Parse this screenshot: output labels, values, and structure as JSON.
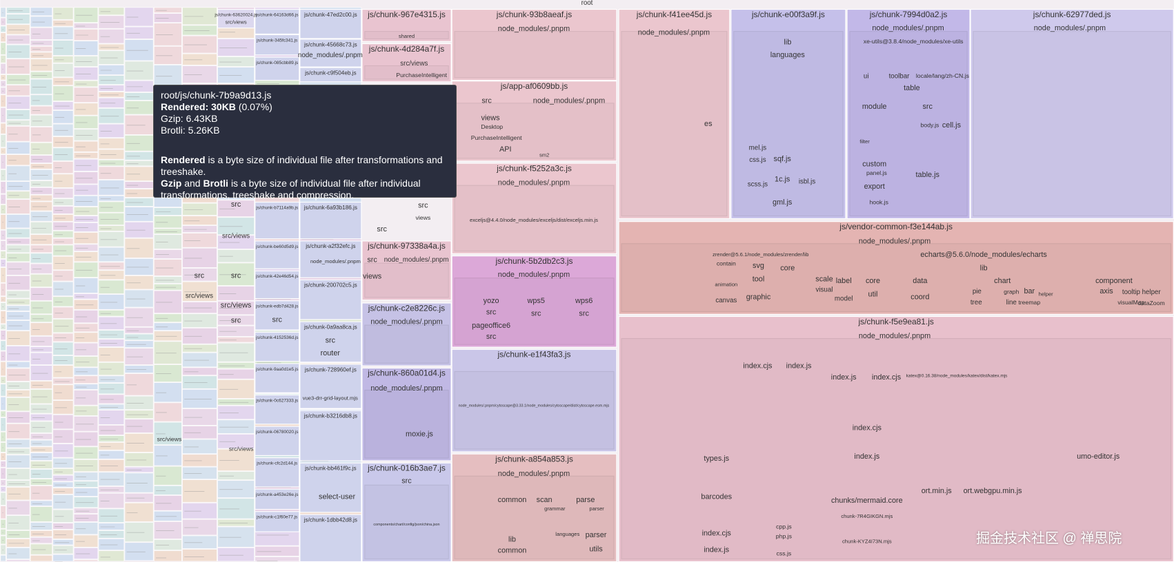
{
  "title": "root",
  "nodes": [
    {
      "label": "js/chunk-967e4315.js"
    },
    {
      "label": "shared"
    },
    {
      "label": "js/chunk-4d284a7f.js"
    },
    {
      "label": "src/views"
    },
    {
      "label": "PurchaseIntelligent"
    },
    {
      "label": "js/chunk-93b8aeaf.js"
    },
    {
      "label": "node_modules/.pnpm"
    },
    {
      "label": "js/app-af0609bb.js"
    },
    {
      "label": "src"
    },
    {
      "label": "node_modules/.pnpm"
    },
    {
      "label": "views"
    },
    {
      "label": "Desktop"
    },
    {
      "label": "PurchaseIntelligent"
    },
    {
      "label": "API"
    },
    {
      "label": "sm2"
    },
    {
      "label": "js/chunk-f5252a3c.js"
    },
    {
      "label": "node_modules/.pnpm"
    },
    {
      "label": "exceljs@4.4.0/node_modules/exceljs/dist/exceljs.min.js"
    },
    {
      "label": "js/chunk-5b2db2c3.js"
    },
    {
      "label": "node_modules/.pnpm"
    },
    {
      "label": "yozo"
    },
    {
      "label": "wps5"
    },
    {
      "label": "wps6"
    },
    {
      "label": "src"
    },
    {
      "label": "src"
    },
    {
      "label": "src"
    },
    {
      "label": "pageoffice6"
    },
    {
      "label": "src"
    },
    {
      "label": "js/chunk-e1f43fa3.js"
    },
    {
      "label": "node_modules/.pnpm/cytoscape@3.33.1/node_modules/cytoscape/dist/cytoscape.esm.mjs"
    },
    {
      "label": "js/chunk-a854a853.js"
    },
    {
      "label": "node_modules/.pnpm"
    },
    {
      "label": "common"
    },
    {
      "label": "scan"
    },
    {
      "label": "parse"
    },
    {
      "label": "grammar"
    },
    {
      "label": "parser"
    },
    {
      "label": "lib"
    },
    {
      "label": "common"
    },
    {
      "label": "languages"
    },
    {
      "label": "parser"
    },
    {
      "label": "utils"
    },
    {
      "label": "js/chunk-f41ee45d.js"
    },
    {
      "label": "node_modules/.pnpm"
    },
    {
      "label": "es"
    },
    {
      "label": "js/chunk-e00f3a9f.js"
    },
    {
      "label": "lib"
    },
    {
      "label": "languages"
    },
    {
      "label": "mel.js"
    },
    {
      "label": "css.js"
    },
    {
      "label": "scss.js"
    },
    {
      "label": "sqf.js"
    },
    {
      "label": "1c.js"
    },
    {
      "label": "gml.js"
    },
    {
      "label": "isbl.js"
    },
    {
      "label": "js/chunk-7994d0a2.js"
    },
    {
      "label": "node_modules/.pnpm"
    },
    {
      "label": "xe-utils@3.8.4/node_modules/xe-utils"
    },
    {
      "label": "ui"
    },
    {
      "label": "toolbar"
    },
    {
      "label": "locale/lang/zh-CN.js"
    },
    {
      "label": "table"
    },
    {
      "label": "module"
    },
    {
      "label": "src"
    },
    {
      "label": "cell.js"
    },
    {
      "label": "body.js"
    },
    {
      "label": "custom"
    },
    {
      "label": "panel.js"
    },
    {
      "label": "export"
    },
    {
      "label": "hook.js"
    },
    {
      "label": "table.js"
    },
    {
      "label": "filter"
    },
    {
      "label": "js/chunk-62977ded.js"
    },
    {
      "label": "node_modules/.pnpm"
    },
    {
      "label": "js/vendor-common-f3e144ab.js"
    },
    {
      "label": "node_modules/.pnpm"
    },
    {
      "label": "echarts@5.6.0/node_modules/echarts"
    },
    {
      "label": "lib"
    },
    {
      "label": "zrender@5.6.1/node_modules/zrender/lib"
    },
    {
      "label": "svg"
    },
    {
      "label": "core"
    },
    {
      "label": "tool"
    },
    {
      "label": "graphic"
    },
    {
      "label": "canvas"
    },
    {
      "label": "contain"
    },
    {
      "label": "animation"
    },
    {
      "label": "scale"
    },
    {
      "label": "label"
    },
    {
      "label": "visual"
    },
    {
      "label": "model"
    },
    {
      "label": "core"
    },
    {
      "label": "util"
    },
    {
      "label": "data"
    },
    {
      "label": "coord"
    },
    {
      "label": "chart"
    },
    {
      "label": "pie"
    },
    {
      "label": "graph"
    },
    {
      "label": "bar"
    },
    {
      "label": "tree"
    },
    {
      "label": "line"
    },
    {
      "label": "treemap"
    },
    {
      "label": "component"
    },
    {
      "label": "axis"
    },
    {
      "label": "tooltip"
    },
    {
      "label": "helper"
    },
    {
      "label": "visualMap"
    },
    {
      "label": "dataZoom"
    },
    {
      "label": "helper"
    },
    {
      "label": "js/chunk-f5e9ea81.js"
    },
    {
      "label": "node_modules/.pnpm"
    },
    {
      "label": "index.cjs"
    },
    {
      "label": "index.js"
    },
    {
      "label": "index.js"
    },
    {
      "label": "index.cjs"
    },
    {
      "label": "index.cjs"
    },
    {
      "label": "index.js"
    },
    {
      "label": "katex@0.16.38/node_modules/katex/dist/katex.mjs"
    },
    {
      "label": "umo-editor.js"
    },
    {
      "label": "ort.min.js"
    },
    {
      "label": "ort.webgpu.min.js"
    },
    {
      "label": "types.js"
    },
    {
      "label": "barcodes"
    },
    {
      "label": "index.cjs"
    },
    {
      "label": "index.js"
    },
    {
      "label": "chunks/mermaid.core"
    },
    {
      "label": "chunk-7R4GIKGN.mjs"
    },
    {
      "label": "chunk-KYZ4I73N.mjs"
    },
    {
      "label": "php.js"
    },
    {
      "label": "cpp.js"
    },
    {
      "label": "css.js"
    },
    {
      "label": "js/chunk-47ed2c00.js"
    },
    {
      "label": "js/chunk-45668c73.js"
    },
    {
      "label": "node_modules/.pnpm"
    },
    {
      "label": "js/chunk-c9f504eb.js"
    },
    {
      "label": "js/chunk-6a93b186.js"
    },
    {
      "label": "js/chunk-a2f32efc.js"
    },
    {
      "label": "node_modules/.pnpm"
    },
    {
      "label": "js/chunk-200702c5.js"
    },
    {
      "label": "js/chunk-0a9aa8ca.js"
    },
    {
      "label": "src"
    },
    {
      "label": "router"
    },
    {
      "label": "js/chunk-728960ef.js"
    },
    {
      "label": "vue3-drr-grid-layout.mjs"
    },
    {
      "label": "js/chunk-b3216db8.js"
    },
    {
      "label": "js/chunk-bb461f9c.js"
    },
    {
      "label": "select-user"
    },
    {
      "label": "js/chunk-1dbb42d8.js"
    },
    {
      "label": "js/chunk-97338a4a.js"
    },
    {
      "label": "src"
    },
    {
      "label": "node_modules/.pnpm"
    },
    {
      "label": "views"
    },
    {
      "label": "js/chunk-c2e8226c.js"
    },
    {
      "label": "node_modules/.pnpm"
    },
    {
      "label": "js/chunk-860a01d4.js"
    },
    {
      "label": "node_modules/.pnpm"
    },
    {
      "label": "moxie.js"
    },
    {
      "label": "js/chunk-016b3ae7.js"
    },
    {
      "label": "src"
    },
    {
      "label": "components/chart/config/json/china.json"
    },
    {
      "label": "src"
    },
    {
      "label": "src"
    },
    {
      "label": "views"
    },
    {
      "label": "js/chunk-64163d66.js"
    },
    {
      "label": "js/chunk-345fc341.js"
    },
    {
      "label": "js/chunk-085cbb89.js"
    },
    {
      "label": "js/chunk-b7114a9b.js"
    },
    {
      "label": "js/chunk-be60d5d9.js"
    },
    {
      "label": "js/chunk-42e46d54.js"
    },
    {
      "label": "js/chunk-edb7d428.js"
    },
    {
      "label": "src"
    },
    {
      "label": "js/chunk-4152536d.js"
    },
    {
      "label": "js/chunk-9aa0d1e5.js"
    },
    {
      "label": "js/chunk-0c627333.js"
    },
    {
      "label": "js/chunk-06780020.js"
    },
    {
      "label": "js/chunk-cfc2d144.js"
    },
    {
      "label": "js/chunk-a453e26e.js"
    },
    {
      "label": "js/chunk-c1f60e77.js"
    },
    {
      "label": "js/chunk-63620024.js"
    },
    {
      "label": "src/views"
    },
    {
      "label": "src"
    },
    {
      "label": "src/views"
    },
    {
      "label": "src"
    },
    {
      "label": "src/views"
    },
    {
      "label": "src"
    },
    {
      "label": "src/views"
    },
    {
      "label": "src"
    },
    {
      "label": "src/views"
    },
    {
      "label": "src/views"
    }
  ],
  "tooltip": {
    "path": "root/js/chunk-7b9a9d13.js",
    "rendered_label": "Rendered:",
    "rendered_value": "30KB",
    "rendered_percent": "(0.07%)",
    "gzip": "Gzip: 6.43KB",
    "brotli": "Brotli: 5.26KB",
    "note1_bold": "Rendered",
    "note1": "is a byte size of individual file after transformations and treeshake.",
    "note2_bold_a": "Gzip",
    "note2_and": "and",
    "note2_bold_b": "Brotli",
    "note2": "is a byte size of individual file after individual transformations, treeshake and compression."
  },
  "watermark": "掘金技术社区 @ 禅思院"
}
